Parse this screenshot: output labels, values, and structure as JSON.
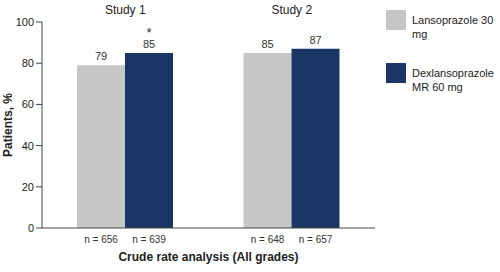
{
  "chart_data": {
    "type": "bar",
    "categories": [
      "Study 1",
      "Study 2"
    ],
    "series": [
      {
        "name": "Lansoprazole 30 mg",
        "color": "#c6c6c6",
        "values": [
          79,
          85
        ],
        "sample_size_labels": [
          "n = 656",
          "n = 648"
        ]
      },
      {
        "name": "Dexlansoprazole MR 60 mg",
        "color": "#1b3565",
        "values": [
          85,
          87
        ],
        "sample_size_labels": [
          "n = 639",
          "n = 657"
        ]
      }
    ],
    "x_label": "Crude rate analysis (All grades)",
    "y_label": "Patients, %",
    "ylim": [
      0,
      100
    ],
    "yticks": [
      0,
      20,
      40,
      60,
      80,
      100
    ],
    "data_labels": true,
    "legend": "right",
    "grid": false,
    "annotations": [
      {
        "text": "*",
        "series": "Dexlansoprazole MR 60 mg",
        "category": "Study 1"
      }
    ]
  }
}
